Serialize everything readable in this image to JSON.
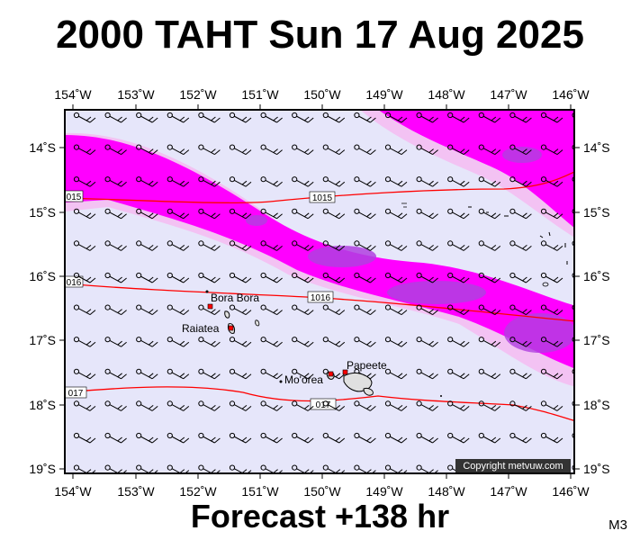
{
  "title": "2000 TAHT Sun 17 Aug 2025",
  "subtitle": "Forecast +138 hr",
  "model_code": "M3",
  "copyright": "Copyright metvuw.com",
  "axes": {
    "lon_ticks": [
      "154˚W",
      "153˚W",
      "152˚W",
      "151˚W",
      "150˚W",
      "149˚W",
      "148˚W",
      "147˚W",
      "146˚W"
    ],
    "lat_ticks": [
      "14˚S",
      "15˚S",
      "16˚S",
      "17˚S",
      "18˚S",
      "19˚S"
    ]
  },
  "places": [
    {
      "name": "Bora Bora"
    },
    {
      "name": "Raiatea"
    },
    {
      "name": "Mo'orea"
    },
    {
      "name": "Papeete"
    }
  ],
  "isobars": [
    {
      "label": "1015"
    },
    {
      "label": "1016"
    },
    {
      "label": "017"
    }
  ],
  "isobar_end_labels": [
    "015",
    "016",
    "017"
  ],
  "colors": {
    "background": "#e6e6fa",
    "band_outer": "#f0b0f0",
    "band_mid": "#ff00ff",
    "band_core": "#b040e0",
    "isobar": "#ff0000",
    "island": "#e0e0e0"
  }
}
